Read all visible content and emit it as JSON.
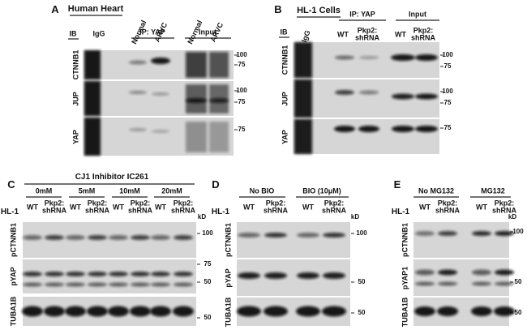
{
  "panelA": {
    "letter": "A",
    "title": "Human Heart",
    "ib": "IB",
    "ip": "IP: YAP",
    "input": "Input",
    "lanes": [
      "IgG",
      "Normal",
      "ARVC",
      "Normal",
      "ARVC"
    ],
    "rows": [
      {
        "label": "CTNNB1",
        "markers": [
          100,
          75
        ]
      },
      {
        "label": "JUP",
        "markers": [
          100,
          75
        ]
      },
      {
        "label": "YAP",
        "markers": [
          75
        ]
      }
    ]
  },
  "panelB": {
    "letter": "B",
    "title": "HL-1 Cells",
    "ib": "IB",
    "ip": "IP: YAP",
    "input": "Input",
    "lanes": [
      "IgG",
      "WT",
      "Pkp2: shRNA",
      "WT",
      "Pkp2: shRNA"
    ],
    "rows": [
      {
        "label": "CTNNB1",
        "markers": [
          100,
          75
        ]
      },
      {
        "label": "JUP",
        "markers": [
          100,
          75
        ]
      },
      {
        "label": "YAP",
        "markers": [
          75
        ]
      }
    ]
  },
  "panelC": {
    "letter": "C",
    "title": "CJ1 Inhibitor IC261",
    "groups": [
      "0mM",
      "5mM",
      "10mM",
      "20mM"
    ],
    "cell": "HL-1",
    "unit": "kD",
    "lanes": [
      "WT",
      "Pkp2: shRNA",
      "WT",
      "Pkp2: shRNA",
      "WT",
      "Pkp2: shRNA",
      "WT",
      "Pkp2: shRNA"
    ],
    "rows": [
      {
        "label": "pCTNNB1",
        "markers": [
          100
        ]
      },
      {
        "label": "pYAP",
        "markers": [
          75,
          50
        ]
      },
      {
        "label": "TUBA1B",
        "markers": [
          50
        ]
      }
    ]
  },
  "panelD": {
    "letter": "D",
    "groups": [
      "No BIO",
      "BIO (10μM)"
    ],
    "cell": "HL-1",
    "unit": "kD",
    "lanes": [
      "WT",
      "Pkp2: shRNA",
      "WT",
      "Pkp2: shRNA"
    ],
    "rows": [
      {
        "label": "pCTNNB1",
        "markers": [
          100
        ]
      },
      {
        "label": "pYAP",
        "markers": [
          50
        ]
      },
      {
        "label": "TUBA1B",
        "markers": [
          50
        ]
      }
    ]
  },
  "panelE": {
    "letter": "E",
    "groups": [
      "No MG132",
      "MG132"
    ],
    "cell": "HL-1",
    "unit": "kD",
    "lanes": [
      "WT",
      "Pkp2: shRNA",
      "WT",
      "Pkp2: shRNA"
    ],
    "rows": [
      {
        "label": "pCTNNB1",
        "markers": [
          100
        ]
      },
      {
        "label": "pYAP1",
        "markers": [
          50
        ]
      },
      {
        "label": "TUBA1B",
        "markers": [
          50
        ]
      }
    ]
  }
}
